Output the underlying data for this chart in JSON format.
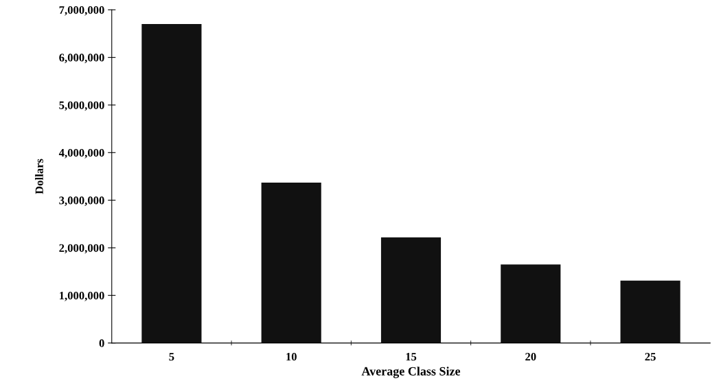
{
  "chart_data": {
    "type": "bar",
    "xlabel": "Average Class Size",
    "ylabel": "Dollars",
    "categories": [
      "5",
      "10",
      "15",
      "20",
      "25"
    ],
    "values": [
      6700000,
      3370000,
      2220000,
      1650000,
      1310000
    ],
    "color": "#111111",
    "ylim": [
      0,
      7000000
    ],
    "yticks": [
      {
        "value": 0,
        "label": "0"
      },
      {
        "value": 1000000,
        "label": "1,000,000"
      },
      {
        "value": 2000000,
        "label": "2,000,000"
      },
      {
        "value": 3000000,
        "label": "3,000,000"
      },
      {
        "value": 4000000,
        "label": "4,000,000"
      },
      {
        "value": 5000000,
        "label": "5,000,000"
      },
      {
        "value": 6000000,
        "label": "6,000,000"
      },
      {
        "value": 7000000,
        "label": "7,000,000"
      }
    ],
    "grid": false,
    "legend": false
  }
}
